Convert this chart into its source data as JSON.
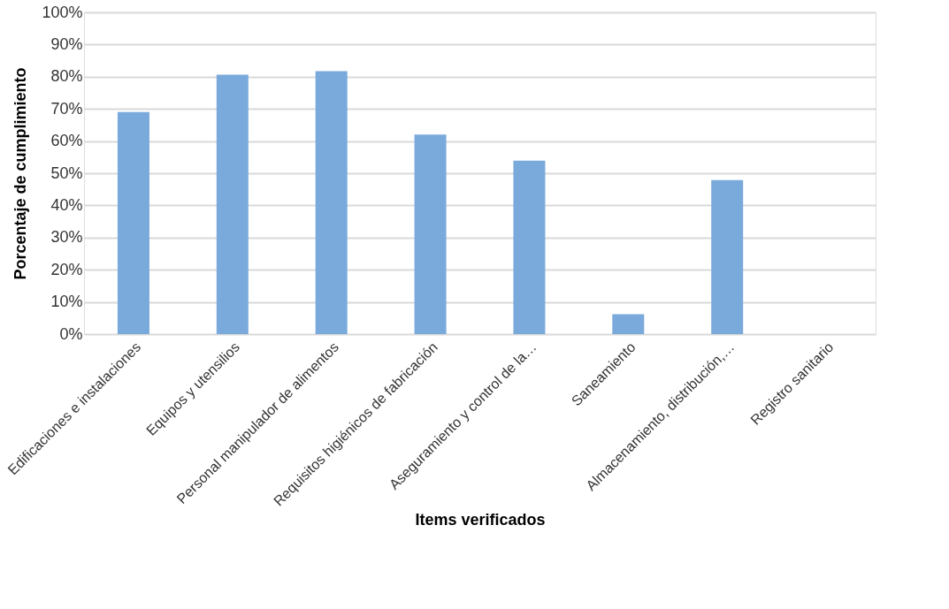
{
  "chart_data": {
    "type": "bar",
    "xlabel": "Items verificados",
    "ylabel": "Porcentaje de cumplimiento",
    "categories": [
      "Edificaciones e instalaciones",
      "Equipos y utensilios",
      "Personal manipulador de alimentos",
      "Requisitos higiénicos de fabricación",
      "Aseguramiento y control de la…",
      "Saneamiento",
      "Almacenamiento, distribución,…",
      "Registro sanitario"
    ],
    "values": [
      69,
      80.6,
      81.7,
      62,
      53.9,
      6.2,
      47.9,
      0
    ],
    "color": "#7aaadb",
    "ylim": [
      0,
      100
    ],
    "yticks": [
      {
        "value": 0,
        "label": "0%"
      },
      {
        "value": 10,
        "label": "10%"
      },
      {
        "value": 20,
        "label": "20%"
      },
      {
        "value": 30,
        "label": "30%"
      },
      {
        "value": 40,
        "label": "40%"
      },
      {
        "value": 50,
        "label": "50%"
      },
      {
        "value": 60,
        "label": "60%"
      },
      {
        "value": 70,
        "label": "70%"
      },
      {
        "value": 80,
        "label": "80%"
      },
      {
        "value": 90,
        "label": "90%"
      },
      {
        "value": 100,
        "label": "100%"
      }
    ],
    "grid": "y"
  }
}
